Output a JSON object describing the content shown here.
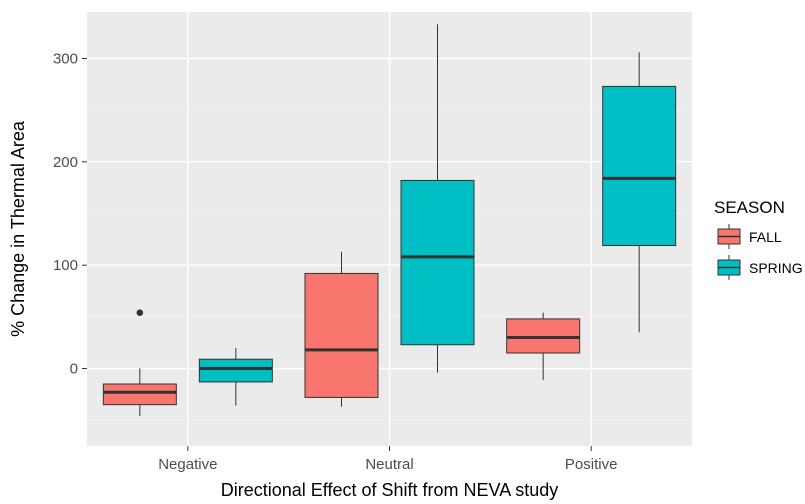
{
  "chart_data": {
    "type": "box",
    "xlabel": "Directional Effect of Shift from NEVA study",
    "ylabel": "% Change in Thermal Area",
    "categories": [
      "Negative",
      "Neutral",
      "Positive"
    ],
    "ylim": [
      -75,
      345
    ],
    "yticks": [
      0,
      100,
      200,
      300
    ],
    "grid": true,
    "legend": {
      "title": "SEASON",
      "position": "right",
      "entries": [
        {
          "label": "FALL",
          "color": "#f8766d"
        },
        {
          "label": "SPRING",
          "color": "#00bfc4"
        }
      ]
    },
    "series": [
      {
        "name": "FALL",
        "color": "#f8766d",
        "boxes": [
          {
            "category": "Negative",
            "whisker_low": -46,
            "q1": -35,
            "median": -23,
            "q3": -15,
            "whisker_high": 0,
            "outliers": [
              54
            ]
          },
          {
            "category": "Neutral",
            "whisker_low": -37,
            "q1": -28,
            "median": 18,
            "q3": 92,
            "whisker_high": 113,
            "outliers": []
          },
          {
            "category": "Positive",
            "whisker_low": -11,
            "q1": 15,
            "median": 30,
            "q3": 48,
            "whisker_high": 54,
            "outliers": []
          }
        ]
      },
      {
        "name": "SPRING",
        "color": "#00bfc4",
        "boxes": [
          {
            "category": "Negative",
            "whisker_low": -36,
            "q1": -13,
            "median": 0,
            "q3": 9,
            "whisker_high": 20,
            "outliers": []
          },
          {
            "category": "Neutral",
            "whisker_low": -4,
            "q1": 23,
            "median": 108,
            "q3": 182,
            "whisker_high": 333,
            "outliers": []
          },
          {
            "category": "Positive",
            "whisker_low": 35,
            "q1": 119,
            "median": 184,
            "q3": 273,
            "whisker_high": 306,
            "outliers": []
          }
        ]
      }
    ]
  }
}
